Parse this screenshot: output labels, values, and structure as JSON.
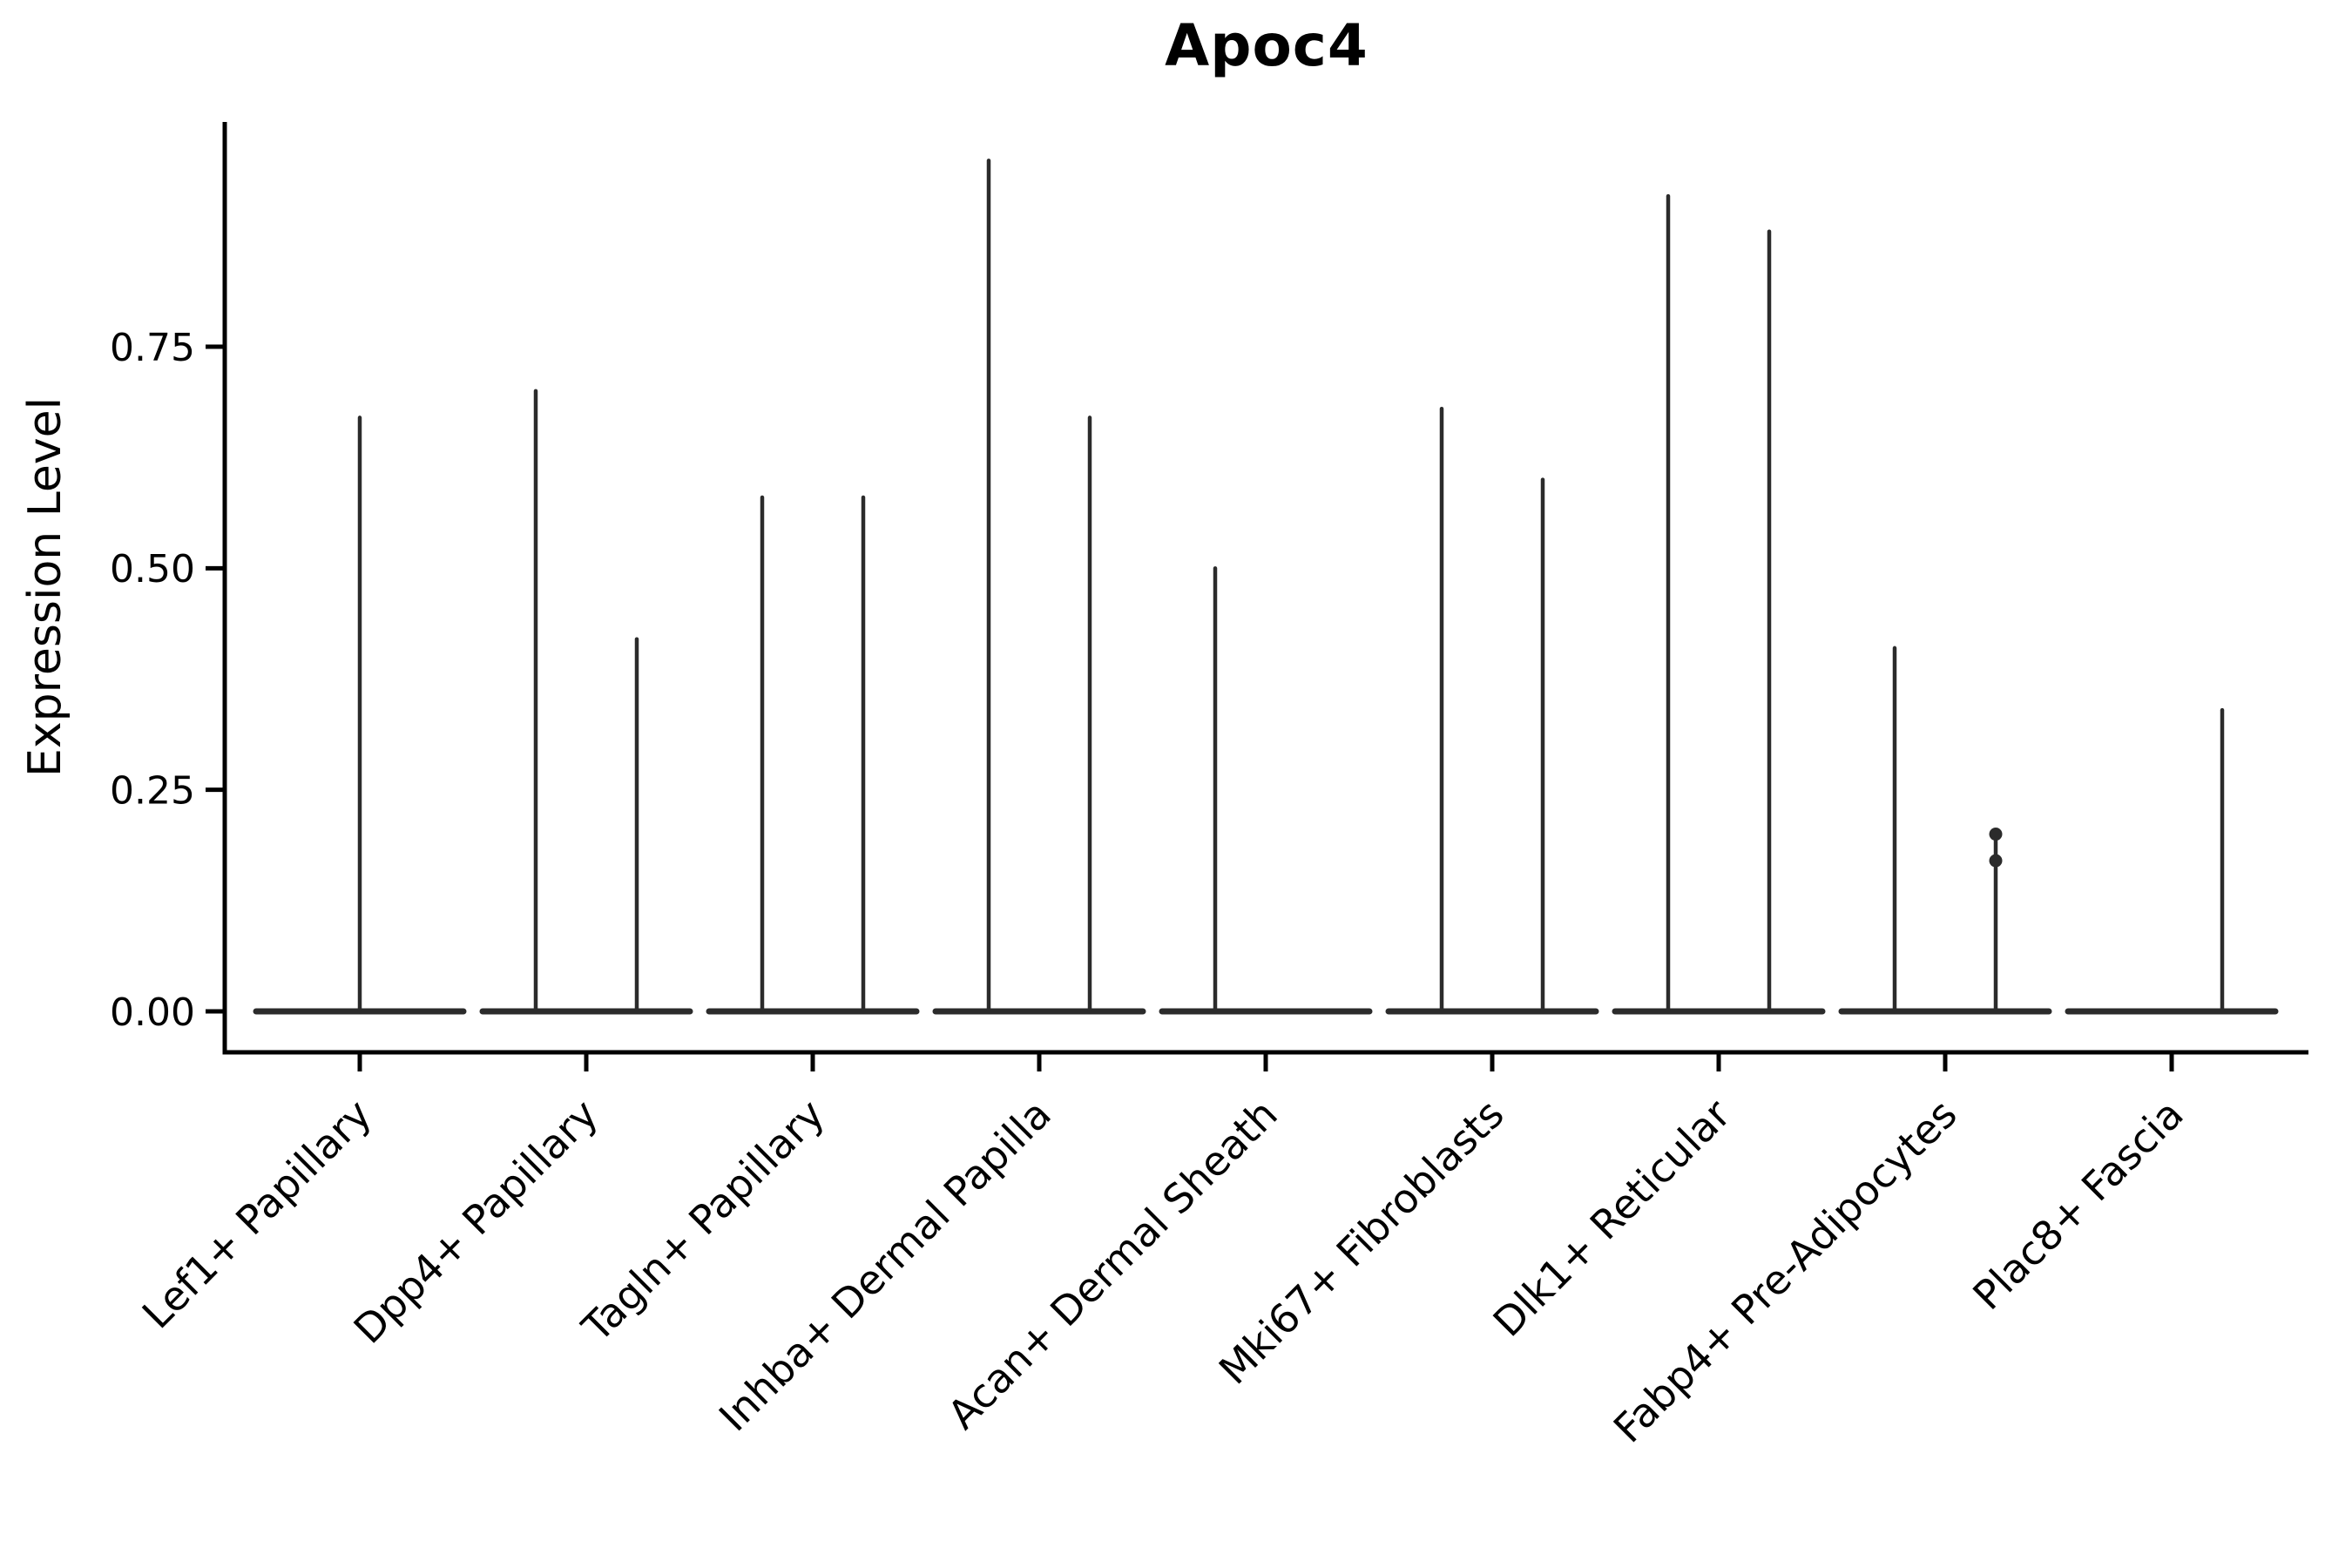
{
  "figure": {
    "title": "Apoc4"
  },
  "chart_data": {
    "type": "violin",
    "title": "Apoc4",
    "xlabel": "",
    "ylabel": "Expression Level",
    "ylim": [
      0,
      1.0
    ],
    "ytick_labels": [
      "0.00",
      "0.25",
      "0.50",
      "0.75"
    ],
    "ytick_values": [
      0,
      0.25,
      0.5,
      0.75
    ],
    "grid": false,
    "legend": "none",
    "line_color": "#2b2b2b",
    "axis_color": "#000000",
    "background_color": "#ffffff",
    "categories": [
      "Lef1+ Papillary",
      "Dpp4+ Papillary",
      "Tagln+ Papillary",
      "Inhba+ Dermal Papilla",
      "Acan+ Dermal Sheath",
      "Mki67+ Fibroblasts",
      "Dlk1+ Reticular",
      "Fabp4+ Pre-Adipocytes",
      "Plac8+ Fascia"
    ],
    "violins": [
      {
        "category": "Lef1+ Papillary",
        "baseline": 0,
        "spikes": [
          {
            "position": "center",
            "max": 0.67
          }
        ]
      },
      {
        "category": "Dpp4+ Papillary",
        "baseline": 0,
        "spikes": [
          {
            "position": "left",
            "max": 0.7
          },
          {
            "position": "right",
            "max": 0.42
          }
        ]
      },
      {
        "category": "Tagln+ Papillary",
        "baseline": 0,
        "spikes": [
          {
            "position": "left",
            "max": 0.58
          },
          {
            "position": "right",
            "max": 0.58
          }
        ]
      },
      {
        "category": "Inhba+ Dermal Papilla",
        "baseline": 0,
        "spikes": [
          {
            "position": "left",
            "max": 0.96
          },
          {
            "position": "right",
            "max": 0.67
          }
        ]
      },
      {
        "category": "Acan+ Dermal Sheath",
        "baseline": 0,
        "spikes": [
          {
            "position": "left",
            "max": 0.5
          }
        ]
      },
      {
        "category": "Mki67+ Fibroblasts",
        "baseline": 0,
        "spikes": [
          {
            "position": "left",
            "max": 0.68
          },
          {
            "position": "right",
            "max": 0.6
          }
        ]
      },
      {
        "category": "Dlk1+ Reticular",
        "baseline": 0,
        "spikes": [
          {
            "position": "left",
            "max": 0.92
          },
          {
            "position": "right",
            "max": 0.88
          }
        ]
      },
      {
        "category": "Fabp4+ Pre-Adipocytes",
        "baseline": 0,
        "spikes": [
          {
            "position": "left",
            "max": 0.41
          },
          {
            "position": "right",
            "max": 0.2,
            "points": [
              0.2,
              0.17
            ]
          }
        ]
      },
      {
        "category": "Plac8+ Fascia",
        "baseline": 0,
        "spikes": [
          {
            "position": "right",
            "max": 0.34
          }
        ]
      }
    ]
  }
}
